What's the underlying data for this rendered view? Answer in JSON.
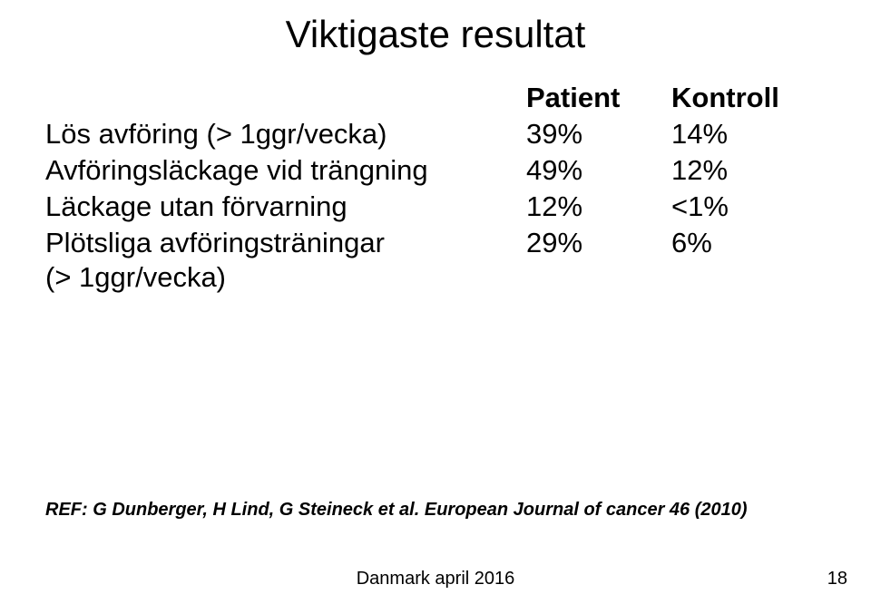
{
  "title": "Viktigaste resultat",
  "headers": {
    "label": "",
    "patient": "Patient",
    "kontroll": "Kontroll"
  },
  "rows": [
    {
      "label": "Lös avföring (> 1ggr/vecka)",
      "patient": "39%",
      "kontroll": "14%"
    },
    {
      "label": "Avföringsläckage vid trängning",
      "patient": "49%",
      "kontroll": "12%"
    },
    {
      "label": "Läckage utan förvarning",
      "patient": "12%",
      "kontroll": "<1%"
    },
    {
      "label": "Plötsliga avföringsträningar",
      "patient": "29%",
      "kontroll": "6%"
    }
  ],
  "continuation": "(> 1ggr/vecka)",
  "reference": "REF: G Dunberger, H Lind, G Steineck et al. European Journal of cancer 46 (2010)",
  "footer_date": "Danmark april 2016",
  "page_number": "18",
  "colors": {
    "background": "#ffffff",
    "text": "#000000"
  },
  "fonts": {
    "title_size": 42,
    "body_size": 31,
    "ref_size": 20,
    "footer_size": 20,
    "family": "Arial"
  }
}
